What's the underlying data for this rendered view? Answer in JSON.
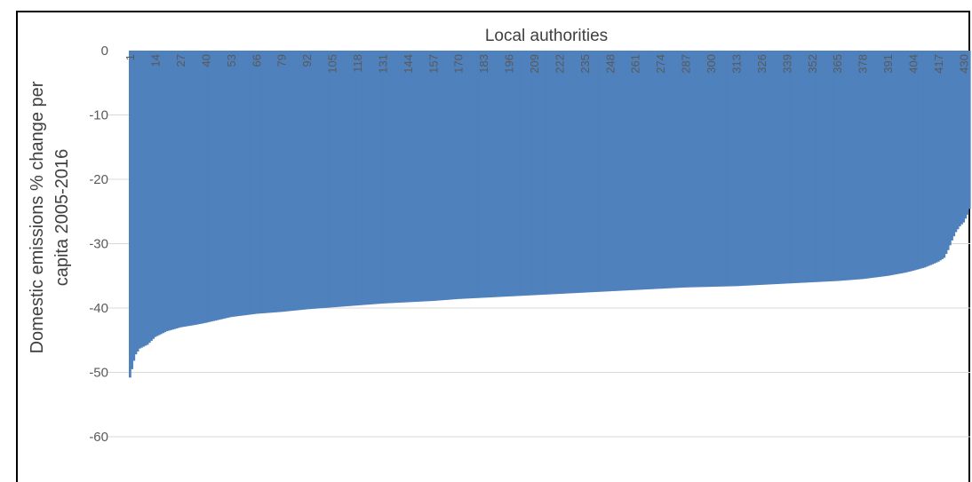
{
  "chart_data": {
    "type": "bar",
    "xlabel": "Local authorities",
    "ylabel_lines": [
      "Domestic emissions % change per",
      "capita 2005-2016"
    ],
    "ylim": [
      -60,
      0
    ],
    "yticks": [
      0,
      -10,
      -20,
      -30,
      -40,
      -50,
      -60
    ],
    "x_count": 433,
    "x_tick_labels": [
      1,
      14,
      27,
      40,
      53,
      66,
      79,
      92,
      105,
      118,
      131,
      144,
      157,
      170,
      183,
      196,
      209,
      222,
      235,
      248,
      261,
      274,
      287,
      300,
      313,
      326,
      339,
      352,
      365,
      378,
      391,
      404,
      417,
      430
    ],
    "sorted_profile": [
      [
        1,
        -50.8
      ],
      [
        2,
        -49.5
      ],
      [
        3,
        -48.2
      ],
      [
        4,
        -47.2
      ],
      [
        6,
        -46.3
      ],
      [
        10,
        -45.7
      ],
      [
        14,
        -44.5
      ],
      [
        20,
        -43.6
      ],
      [
        27,
        -43.0
      ],
      [
        35,
        -42.6
      ],
      [
        40,
        -42.3
      ],
      [
        53,
        -41.4
      ],
      [
        66,
        -40.9
      ],
      [
        79,
        -40.6
      ],
      [
        92,
        -40.2
      ],
      [
        105,
        -39.9
      ],
      [
        118,
        -39.6
      ],
      [
        131,
        -39.3
      ],
      [
        144,
        -39.1
      ],
      [
        157,
        -38.9
      ],
      [
        170,
        -38.6
      ],
      [
        183,
        -38.4
      ],
      [
        196,
        -38.2
      ],
      [
        209,
        -38.0
      ],
      [
        222,
        -37.8
      ],
      [
        235,
        -37.6
      ],
      [
        248,
        -37.4
      ],
      [
        261,
        -37.2
      ],
      [
        274,
        -37.0
      ],
      [
        287,
        -36.8
      ],
      [
        300,
        -36.7
      ],
      [
        313,
        -36.6
      ],
      [
        326,
        -36.4
      ],
      [
        339,
        -36.2
      ],
      [
        352,
        -36.0
      ],
      [
        365,
        -35.8
      ],
      [
        378,
        -35.5
      ],
      [
        391,
        -35.0
      ],
      [
        400,
        -34.5
      ],
      [
        404,
        -34.2
      ],
      [
        410,
        -33.7
      ],
      [
        414,
        -33.2
      ],
      [
        417,
        -32.8
      ],
      [
        420,
        -32.2
      ],
      [
        422,
        -31.0
      ],
      [
        424,
        -29.5
      ],
      [
        426,
        -28.2
      ],
      [
        428,
        -27.3
      ],
      [
        430,
        -26.7
      ],
      [
        432,
        -25.5
      ],
      [
        433,
        -24.6
      ]
    ],
    "bar_color": "#4f81bd",
    "grid": true
  }
}
